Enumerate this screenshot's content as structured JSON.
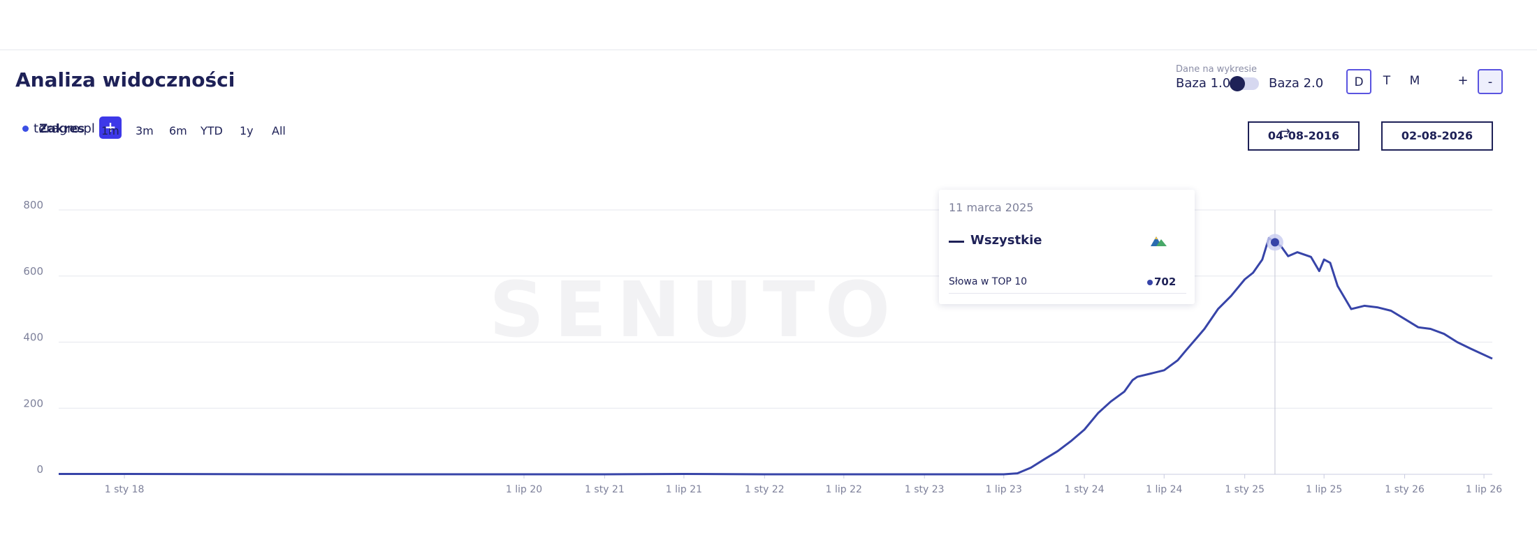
{
  "header": {
    "title": "Analiza widoczności",
    "domain": "teragro.pl",
    "add_label": "+"
  },
  "base_switch": {
    "label": "Dane na wykresie",
    "option1": "Baza 1.0",
    "option2": "Baza 2.0"
  },
  "periods": [
    "D",
    "T",
    "M"
  ],
  "zoom": {
    "plus": "+",
    "minus": "-"
  },
  "range": {
    "label": "Zakres",
    "buttons": [
      "1m",
      "3m",
      "6m",
      "YTD",
      "1y",
      "All"
    ],
    "from": "04-08-2016",
    "to": "02-08-2026",
    "arrow": "→"
  },
  "watermark": "SENUTO",
  "tooltip": {
    "date": "11 marca 2025",
    "series": "Wszystkie",
    "metric": "Słowa w TOP 10",
    "value": "702"
  },
  "colors": {
    "line": "#3744a8",
    "accent": "#3d38e8",
    "text": "#1e2157",
    "grid": "#e6e7ee"
  },
  "chart_data": {
    "type": "line",
    "ylim": [
      0,
      800
    ],
    "yticks": [
      0,
      200,
      400,
      600,
      800
    ],
    "xlim": [
      "2017-08-04",
      "2026-07-20"
    ],
    "xticks": [
      {
        "label": "1 sty 18",
        "date": "2018-01-01"
      },
      {
        "label": "1 lip 20",
        "date": "2020-07-01"
      },
      {
        "label": "1 sty 21",
        "date": "2021-01-01"
      },
      {
        "label": "1 lip 21",
        "date": "2021-07-01"
      },
      {
        "label": "1 sty 22",
        "date": "2022-01-01"
      },
      {
        "label": "1 lip 22",
        "date": "2022-07-01"
      },
      {
        "label": "1 sty 23",
        "date": "2023-01-01"
      },
      {
        "label": "1 lip 23",
        "date": "2023-07-01"
      },
      {
        "label": "1 sty 24",
        "date": "2024-01-01"
      },
      {
        "label": "1 lip 24",
        "date": "2024-07-01"
      },
      {
        "label": "1 sty 25",
        "date": "2025-01-01"
      },
      {
        "label": "1 lip 25",
        "date": "2025-07-01"
      },
      {
        "label": "1 sty 26",
        "date": "2026-01-01"
      },
      {
        "label": "1 lip 26",
        "date": "2026-07-01"
      }
    ],
    "series": [
      {
        "name": "Wszystkie",
        "points": [
          [
            "2017-08-04",
            1
          ],
          [
            "2018-01-01",
            1
          ],
          [
            "2019-06-01",
            0
          ],
          [
            "2020-07-01",
            0
          ],
          [
            "2021-01-01",
            0
          ],
          [
            "2021-07-01",
            1
          ],
          [
            "2022-01-01",
            0
          ],
          [
            "2022-07-01",
            0
          ],
          [
            "2023-01-01",
            0
          ],
          [
            "2023-07-01",
            0
          ],
          [
            "2023-08-01",
            3
          ],
          [
            "2023-09-01",
            20
          ],
          [
            "2023-10-01",
            45
          ],
          [
            "2023-11-01",
            70
          ],
          [
            "2023-12-01",
            100
          ],
          [
            "2024-01-01",
            135
          ],
          [
            "2024-02-01",
            185
          ],
          [
            "2024-03-01",
            220
          ],
          [
            "2024-04-01",
            250
          ],
          [
            "2024-04-20",
            285
          ],
          [
            "2024-05-01",
            295
          ],
          [
            "2024-06-01",
            305
          ],
          [
            "2024-07-01",
            315
          ],
          [
            "2024-08-01",
            345
          ],
          [
            "2024-08-20",
            375
          ],
          [
            "2024-09-15",
            415
          ],
          [
            "2024-10-01",
            440
          ],
          [
            "2024-11-01",
            500
          ],
          [
            "2024-12-01",
            540
          ],
          [
            "2025-01-01",
            590
          ],
          [
            "2025-01-20",
            610
          ],
          [
            "2025-02-10",
            650
          ],
          [
            "2025-02-25",
            715
          ],
          [
            "2025-03-11",
            702
          ],
          [
            "2025-03-25",
            690
          ],
          [
            "2025-04-10",
            660
          ],
          [
            "2025-05-01",
            672
          ],
          [
            "2025-06-01",
            658
          ],
          [
            "2025-06-20",
            615
          ],
          [
            "2025-07-01",
            650
          ],
          [
            "2025-07-15",
            640
          ],
          [
            "2025-08-01",
            570
          ],
          [
            "2025-09-01",
            500
          ],
          [
            "2025-10-01",
            510
          ],
          [
            "2025-11-01",
            505
          ],
          [
            "2025-12-01",
            495
          ],
          [
            "2026-01-01",
            470
          ],
          [
            "2026-02-01",
            445
          ],
          [
            "2026-03-01",
            440
          ],
          [
            "2026-04-01",
            425
          ],
          [
            "2026-05-01",
            400
          ],
          [
            "2026-06-01",
            380
          ],
          [
            "2026-07-20",
            350
          ]
        ]
      }
    ],
    "highlight": {
      "date": "2025-03-11",
      "value": 702
    }
  }
}
